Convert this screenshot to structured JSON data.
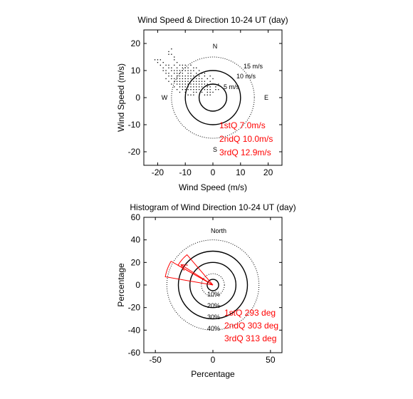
{
  "chart_data": [
    {
      "type": "scatter",
      "title": "Wind Speed & Direction 10-24 UT (day)",
      "xlabel": "Wind Speed (m/s)",
      "ylabel": "Wind Speed (m/s)",
      "xlim": [
        -25,
        25
      ],
      "ylim": [
        -25,
        25
      ],
      "xticks": [
        -20,
        -10,
        0,
        10,
        20
      ],
      "yticks": [
        -20,
        -10,
        0,
        10,
        20
      ],
      "x_tick_labels": [
        "-20",
        "-10",
        "0",
        "10",
        "20"
      ],
      "y_tick_labels": [
        "20",
        "10",
        "0",
        "-10",
        "-20"
      ],
      "compass": {
        "N": "N",
        "S": "S",
        "E": "E",
        "W": "W"
      },
      "ring_labels": [
        {
          "r": 5,
          "text": "5 m/s"
        },
        {
          "r": 10,
          "text": "10 m/s"
        },
        {
          "r": 15,
          "text": "15 m/s"
        }
      ],
      "quartile_labels": [
        "1stQ 7.0m/s",
        "2ndQ 10.0m/s",
        "3rdQ 12.9m/s"
      ],
      "quartile_radii": [
        7.0,
        10.0,
        12.9
      ],
      "points": [
        [
          -16,
          17
        ],
        [
          -15,
          18
        ],
        [
          -14,
          12
        ],
        [
          -13,
          10
        ],
        [
          -12,
          9
        ],
        [
          -11,
          8
        ],
        [
          -10,
          8
        ],
        [
          -9,
          7
        ],
        [
          -8,
          7
        ],
        [
          -7,
          6
        ],
        [
          -6,
          6
        ],
        [
          -5,
          5
        ],
        [
          -4,
          5
        ],
        [
          -3,
          4
        ],
        [
          -2,
          5
        ],
        [
          -1,
          4
        ],
        [
          -12,
          7
        ],
        [
          -11,
          6
        ],
        [
          -10,
          5
        ],
        [
          -9,
          6
        ],
        [
          -8,
          5
        ],
        [
          -7,
          4
        ],
        [
          -6,
          5
        ],
        [
          -5,
          4
        ],
        [
          -4,
          3
        ],
        [
          -3,
          3
        ],
        [
          -2,
          3
        ],
        [
          -1,
          2
        ],
        [
          -13,
          8
        ],
        [
          -14,
          9
        ],
        [
          -15,
          10
        ],
        [
          -16,
          11
        ],
        [
          -17,
          12
        ],
        [
          -18,
          13
        ],
        [
          -19,
          14
        ],
        [
          -20,
          13
        ],
        [
          -21,
          14
        ],
        [
          -11,
          9
        ],
        [
          -10,
          10
        ],
        [
          -9,
          9
        ],
        [
          -8,
          8
        ],
        [
          -7,
          8
        ],
        [
          -6,
          7
        ],
        [
          -5,
          7
        ],
        [
          -4,
          6
        ],
        [
          -3,
          6
        ],
        [
          -10,
          4
        ],
        [
          -9,
          3
        ],
        [
          -8,
          3
        ],
        [
          -7,
          2
        ],
        [
          -6,
          3
        ],
        [
          -12,
          4
        ],
        [
          -13,
          5
        ],
        [
          -14,
          6
        ],
        [
          -11,
          3
        ],
        [
          -10,
          2
        ],
        [
          -9,
          1
        ],
        [
          -8,
          1
        ],
        [
          -7,
          1
        ],
        [
          -12,
          2
        ],
        [
          -13,
          3
        ],
        [
          -6,
          9
        ],
        [
          -5,
          8
        ],
        [
          -4,
          7
        ],
        [
          -3,
          8
        ],
        [
          -2,
          7
        ],
        [
          -1,
          6
        ],
        [
          0,
          5
        ],
        [
          1,
          4
        ],
        [
          2,
          3
        ],
        [
          -14,
          4
        ],
        [
          -15,
          5
        ],
        [
          -16,
          6
        ],
        [
          -17,
          7
        ],
        [
          -11,
          11
        ],
        [
          -10,
          12
        ],
        [
          -9,
          11
        ],
        [
          -8,
          10
        ],
        [
          -7,
          10
        ],
        [
          -6,
          11
        ],
        [
          -15,
          8
        ],
        [
          -16,
          9
        ],
        [
          -17,
          10
        ],
        [
          -18,
          11
        ],
        [
          -9,
          4
        ],
        [
          -8,
          4
        ],
        [
          -7,
          3
        ],
        [
          -6,
          2
        ],
        [
          -5,
          3
        ],
        [
          -4,
          2
        ],
        [
          -3,
          1
        ],
        [
          -2,
          1
        ],
        [
          -11,
          5
        ],
        [
          -12,
          6
        ],
        [
          -13,
          7
        ],
        [
          -7,
          5
        ],
        [
          -6,
          4
        ],
        [
          -5,
          6
        ],
        [
          -4,
          4
        ],
        [
          -3,
          5
        ],
        [
          -2,
          4
        ],
        [
          -1,
          3
        ],
        [
          -10,
          6
        ],
        [
          -9,
          5
        ],
        [
          -8,
          6
        ],
        [
          -9,
          8
        ],
        [
          -8,
          9
        ],
        [
          -7,
          7
        ],
        [
          -6,
          8
        ],
        [
          -10,
          7
        ],
        [
          -11,
          7
        ],
        [
          -12,
          8
        ],
        [
          -13,
          9
        ],
        [
          -14,
          10
        ],
        [
          -15,
          11
        ],
        [
          -16,
          12
        ],
        [
          -14,
          14
        ],
        [
          -13,
          13
        ],
        [
          -12,
          12
        ],
        [
          -11,
          10
        ],
        [
          -20,
          14
        ],
        [
          -19,
          12
        ],
        [
          -18,
          10
        ],
        [
          -17,
          9
        ],
        [
          -16,
          8
        ],
        [
          -15,
          7
        ],
        [
          -14,
          7
        ],
        [
          -13,
          6
        ],
        [
          -12,
          5
        ],
        [
          -11,
          4
        ],
        [
          -10,
          3
        ],
        [
          -2,
          2
        ],
        [
          -1,
          1
        ],
        [
          0,
          2
        ],
        [
          1,
          3
        ],
        [
          2,
          5
        ],
        [
          0,
          7
        ],
        [
          -1,
          8
        ],
        [
          -3,
          9
        ],
        [
          -4,
          9
        ],
        [
          -5,
          10
        ],
        [
          -15,
          16
        ],
        [
          -16,
          16
        ],
        [
          -14,
          15
        ],
        [
          -13,
          11
        ],
        [
          -12,
          10
        ],
        [
          -11,
          12
        ],
        [
          -10,
          11
        ],
        [
          -9,
          10
        ],
        [
          -8,
          12
        ],
        [
          -7,
          11
        ]
      ]
    },
    {
      "type": "polar-bar",
      "title": "Histogram of Wind Direction 10-24 UT (day)",
      "xlabel": "Percentage",
      "ylabel": "Percentage",
      "xlim": [
        -60,
        60
      ],
      "ylim": [
        -60,
        60
      ],
      "xticks": [
        -50,
        0,
        50
      ],
      "yticks": [
        -60,
        -40,
        -20,
        0,
        20,
        40,
        60
      ],
      "x_tick_labels": [
        "-50",
        "0",
        "50"
      ],
      "y_tick_labels": [
        "60",
        "40",
        "20",
        "0",
        "-20",
        "-40",
        "-60"
      ],
      "north_label": "North",
      "ring_labels": [
        {
          "r": 10,
          "text": "10%"
        },
        {
          "r": 20,
          "text": "20%"
        },
        {
          "r": 30,
          "text": "30%"
        },
        {
          "r": 40,
          "text": "40%"
        }
      ],
      "quartile_labels": [
        "1stQ 293 deg",
        "2ndQ 303 deg",
        "3rdQ 313 deg"
      ],
      "bins": [
        {
          "deg": 290,
          "percent": 42
        },
        {
          "deg": 310,
          "percent": 35
        }
      ],
      "median_arrow": {
        "deg": 303,
        "percent": 33
      }
    }
  ]
}
